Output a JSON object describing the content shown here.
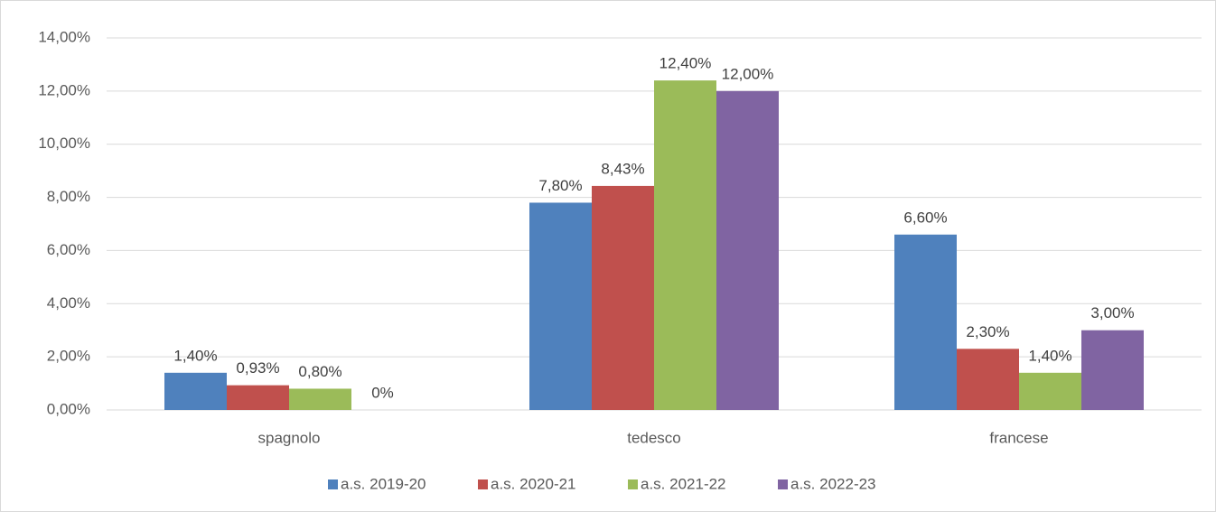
{
  "chart_data": {
    "type": "bar",
    "categories": [
      "spagnolo",
      "tedesco",
      "francese"
    ],
    "series": [
      {
        "name": "a.s. 2019-20",
        "color": "#4f81bd",
        "values": [
          1.4,
          7.8,
          6.6
        ],
        "value_labels": [
          "1,40%",
          "7,80%",
          "6,60%"
        ]
      },
      {
        "name": "a.s. 2020-21",
        "color": "#c0504d",
        "values": [
          0.93,
          8.43,
          2.3
        ],
        "value_labels": [
          "0,93%",
          "8,43%",
          "2,30%"
        ]
      },
      {
        "name": "a.s. 2021-22",
        "color": "#9bbb59",
        "values": [
          0.8,
          12.4,
          1.4
        ],
        "value_labels": [
          "0,80%",
          "12,40%",
          "1,40%"
        ]
      },
      {
        "name": "a.s. 2022-23",
        "color": "#8064a2",
        "values": [
          0,
          12,
          3
        ],
        "value_labels": [
          "0%",
          "12,00%",
          "3,00%"
        ]
      }
    ],
    "ylim": [
      0,
      14
    ],
    "yticks": [
      {
        "value": 0,
        "label": "0,00%"
      },
      {
        "value": 2,
        "label": "2,00%"
      },
      {
        "value": 4,
        "label": "4,00%"
      },
      {
        "value": 6,
        "label": "6,00%"
      },
      {
        "value": 8,
        "label": "8,00%"
      },
      {
        "value": 10,
        "label": "10,00%"
      },
      {
        "value": 12,
        "label": "12,00%"
      },
      {
        "value": 14,
        "label": "14,00%"
      }
    ],
    "grid": true,
    "legend": "bottom"
  }
}
